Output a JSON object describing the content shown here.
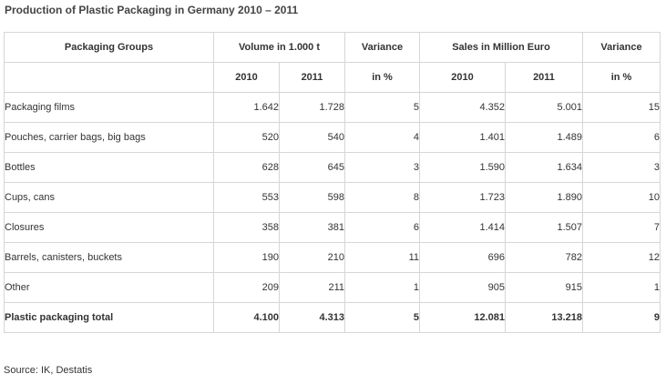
{
  "title": "Production of Plastic Packaging in Germany 2010 – 2011",
  "header": {
    "groups": "Packaging Groups",
    "volume": "Volume in 1.000 t",
    "variance_1": "Variance",
    "sales": "Sales in Million Euro",
    "variance_2": "Variance",
    "vol_2010": "2010",
    "vol_2011": "2011",
    "var_unit_1": "in %",
    "sales_2010": "2010",
    "sales_2011": "2011",
    "var_unit_2": "in %"
  },
  "rows": [
    {
      "group": "Packaging films",
      "vol_2010": "1.642",
      "vol_2011": "1.728",
      "vol_var": "5",
      "sales_2010": "4.352",
      "sales_2011": "5.001",
      "sales_var": "15"
    },
    {
      "group": "Pouches, carrier bags, big bags",
      "vol_2010": "520",
      "vol_2011": "540",
      "vol_var": "4",
      "sales_2010": "1.401",
      "sales_2011": "1.489",
      "sales_var": "6"
    },
    {
      "group": "Bottles",
      "vol_2010": "628",
      "vol_2011": "645",
      "vol_var": "3",
      "sales_2010": "1.590",
      "sales_2011": "1.634",
      "sales_var": "3"
    },
    {
      "group": "Cups, cans",
      "vol_2010": "553",
      "vol_2011": "598",
      "vol_var": "8",
      "sales_2010": "1.723",
      "sales_2011": "1.890",
      "sales_var": "10"
    },
    {
      "group": "Closures",
      "vol_2010": "358",
      "vol_2011": "381",
      "vol_var": "6",
      "sales_2010": "1.414",
      "sales_2011": "1.507",
      "sales_var": "7"
    },
    {
      "group": "Barrels, canisters, buckets",
      "vol_2010": "190",
      "vol_2011": "210",
      "vol_var": "11",
      "sales_2010": "696",
      "sales_2011": "782",
      "sales_var": "12"
    },
    {
      "group": "Other",
      "vol_2010": "209",
      "vol_2011": "211",
      "vol_var": "1",
      "sales_2010": "905",
      "sales_2011": "915",
      "sales_var": "1"
    }
  ],
  "total": {
    "group": "Plastic packaging total",
    "vol_2010": "4.100",
    "vol_2011": "4.313",
    "vol_var": "5",
    "sales_2010": "12.081",
    "sales_2011": "13.218",
    "sales_var": "9"
  },
  "source": "Source: IK, Destatis"
}
